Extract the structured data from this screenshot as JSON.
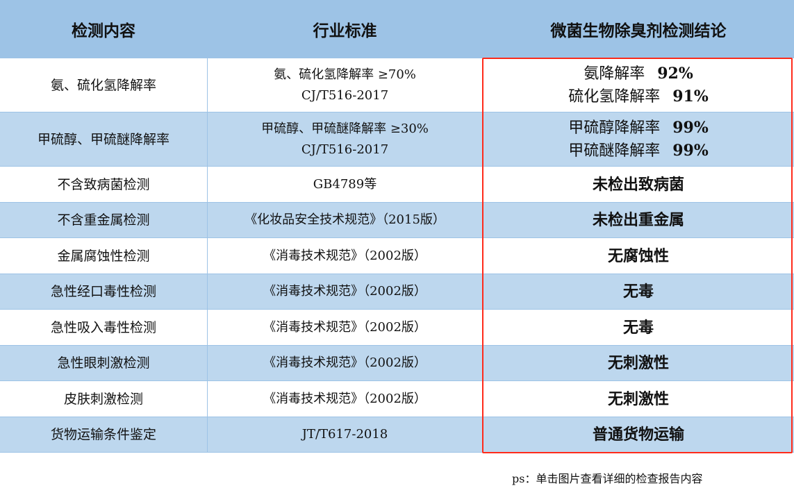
{
  "headers": [
    "检测内容",
    "行业标准",
    "微菌生物除臭剂检测结论"
  ],
  "rows": [
    {
      "item": "氨、硫化氢降解率",
      "standard": [
        "氨、硫化氢降解率 ≥70%",
        "CJ/T516-2017"
      ],
      "result": [
        {
          "label": "氨降解率",
          "value": "92%"
        },
        {
          "label": "硫化氢降解率",
          "value": "91%"
        }
      ]
    },
    {
      "item": "甲硫醇、甲硫醚降解率",
      "standard": [
        "甲硫醇、甲硫醚降解率 ≥30%",
        "CJ/T516-2017"
      ],
      "result": [
        {
          "label": "甲硫醇降解率",
          "value": "99%"
        },
        {
          "label": "甲硫醚降解率",
          "value": "99%"
        }
      ]
    },
    {
      "item": "不含致病菌检测",
      "standard": [
        "GB4789等"
      ],
      "result_text": "未检出致病菌"
    },
    {
      "item": "不含重金属检测",
      "standard": [
        "《化妆品安全技术规范》（2015版）"
      ],
      "result_text": "未检出重金属"
    },
    {
      "item": "金属腐蚀性检测",
      "standard": [
        "《消毒技术规范》（2002版）"
      ],
      "result_text": "无腐蚀性"
    },
    {
      "item": "急性经口毒性检测",
      "standard": [
        "《消毒技术规范》（2002版）"
      ],
      "result_text": "无毒"
    },
    {
      "item": "急性吸入毒性检测",
      "standard": [
        "《消毒技术规范》（2002版）"
      ],
      "result_text": "无毒"
    },
    {
      "item": "急性眼刺激检测",
      "standard": [
        "《消毒技术规范》（2002版）"
      ],
      "result_text": "无刺激性"
    },
    {
      "item": "皮肤刺激检测",
      "standard": [
        "《消毒技术规范》（2002版）"
      ],
      "result_text": "无刺激性"
    },
    {
      "item": "货物运输条件鉴定",
      "standard": [
        "JT/T617-2018"
      ],
      "result_text": "普通货物运输"
    }
  ],
  "note": "ps：单击图片查看详细的检查报告内容",
  "colors": {
    "header": "#9dc3e6",
    "alt_row": "#bdd7ee",
    "highlight_border": "#ff2a1a"
  }
}
